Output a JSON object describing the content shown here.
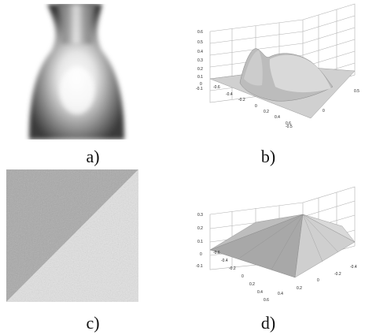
{
  "figure": {
    "panels": [
      {
        "id": "a",
        "label": "a)"
      },
      {
        "id": "b",
        "label": "b)",
        "z_ticks": [
          "0.6",
          "0.5",
          "0.4",
          "0.3",
          "0.2",
          "0.1",
          "0",
          "-0.1"
        ],
        "x_ticks": [
          "-0.6",
          "-0.4",
          "-0.2",
          "0",
          "0.2",
          "0.4",
          "0.6"
        ],
        "y_ticks": [
          "-0.5",
          "0",
          "0.5"
        ]
      },
      {
        "id": "c",
        "label": "c)"
      },
      {
        "id": "d",
        "label": "d)",
        "z_ticks": [
          "0.3",
          "0.2",
          "0.1",
          "0",
          "-0.1"
        ],
        "x_ticks": [
          "-0.6",
          "-0.4",
          "-0.2",
          "0",
          "0.2",
          "0.4",
          "0.6"
        ],
        "y_ticks": [
          "0.4",
          "0.2",
          "0",
          "-0.2",
          "-0.4"
        ]
      }
    ]
  }
}
